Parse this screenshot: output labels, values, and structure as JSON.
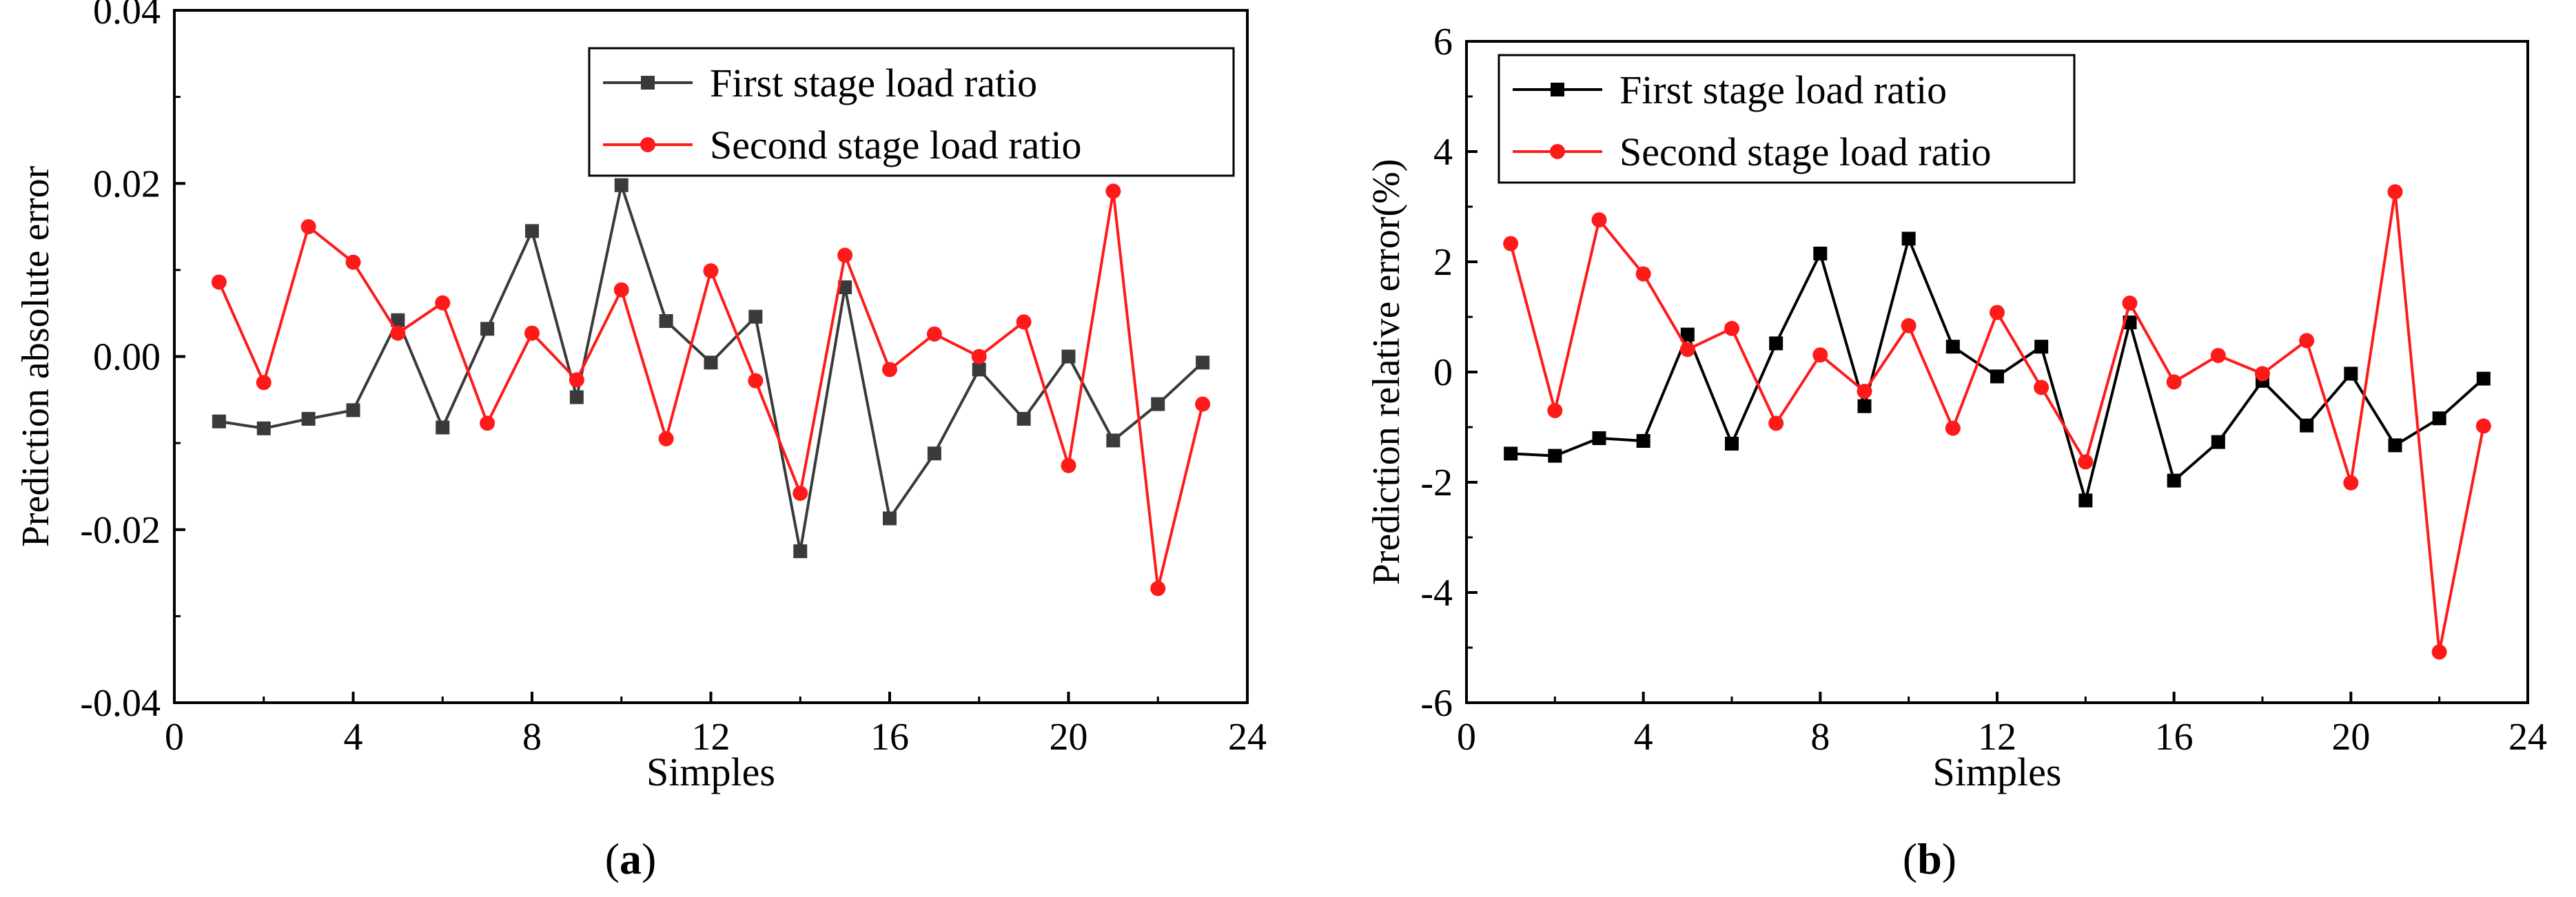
{
  "chart_data": [
    {
      "type": "line",
      "panel_label": "a",
      "xlabel": "Simples",
      "ylabel": "Prediction absolute error",
      "xlim": [
        0,
        24
      ],
      "ylim": [
        -0.04,
        0.04
      ],
      "xticks": [
        0,
        4,
        8,
        12,
        16,
        20,
        24
      ],
      "yticks": [
        -0.04,
        -0.02,
        0.0,
        0.02,
        0.04
      ],
      "ytick_labels": [
        "-0.04",
        "-0.02",
        "0.00",
        "0.02",
        "0.04"
      ],
      "grid": false,
      "legend_position": "top-right",
      "x": [
        1,
        2,
        3,
        4,
        5,
        6,
        7,
        8,
        9,
        10,
        11,
        12,
        13,
        14,
        15,
        16,
        17,
        18,
        19,
        20,
        21,
        22,
        23
      ],
      "series": [
        {
          "name": "First stage load ratio",
          "color": "#3a3a3a",
          "marker": "square",
          "values": [
            -0.0075,
            -0.0083,
            -0.0072,
            -0.0062,
            0.0042,
            -0.0082,
            0.0032,
            0.0145,
            -0.0047,
            0.0198,
            0.0041,
            -0.0007,
            0.0046,
            -0.0225,
            0.008,
            -0.0187,
            -0.0112,
            -0.0015,
            -0.0072,
            0.0,
            -0.0097,
            -0.0055,
            -0.0007
          ]
        },
        {
          "name": "Second stage load ratio",
          "color": "#ff1a1a",
          "marker": "circle",
          "values": [
            0.0086,
            -0.003,
            0.015,
            0.0109,
            0.0027,
            0.0062,
            -0.0077,
            0.0027,
            -0.0027,
            0.0077,
            -0.0095,
            0.0099,
            -0.0028,
            -0.0158,
            0.0117,
            -0.0015,
            0.0026,
            0.0,
            0.004,
            -0.0126,
            0.0191,
            -0.0268,
            -0.0055
          ]
        }
      ]
    },
    {
      "type": "line",
      "panel_label": "b",
      "xlabel": "Simples",
      "ylabel": "Prediction relative error(%)",
      "xlim": [
        0,
        24
      ],
      "ylim": [
        -6,
        6
      ],
      "xticks": [
        0,
        4,
        8,
        12,
        16,
        20,
        24
      ],
      "yticks": [
        -6,
        -4,
        -2,
        0,
        2,
        4,
        6
      ],
      "ytick_labels": [
        "-6",
        "-4",
        "-2",
        "0",
        "2",
        "4",
        "6"
      ],
      "grid": false,
      "legend_position": "top-left",
      "x": [
        1,
        2,
        3,
        4,
        5,
        6,
        7,
        8,
        9,
        10,
        11,
        12,
        13,
        14,
        15,
        16,
        17,
        18,
        19,
        20,
        21,
        22,
        23
      ],
      "series": [
        {
          "name": "First stage load ratio",
          "color": "#000000",
          "marker": "square",
          "values": [
            -1.48,
            -1.52,
            -1.2,
            -1.25,
            0.68,
            -1.3,
            0.52,
            2.15,
            -0.62,
            2.42,
            0.46,
            -0.08,
            0.46,
            -2.33,
            0.9,
            -1.97,
            -1.27,
            -0.16,
            -0.97,
            -0.03,
            -1.33,
            -0.84,
            -0.12
          ]
        },
        {
          "name": "Second stage load ratio",
          "color": "#ff1a1a",
          "marker": "circle",
          "values": [
            2.33,
            -0.7,
            2.76,
            1.78,
            0.41,
            0.79,
            -0.93,
            0.31,
            -0.35,
            0.84,
            -1.02,
            1.08,
            -0.28,
            -1.63,
            1.25,
            -0.18,
            0.3,
            -0.03,
            0.57,
            -2.01,
            3.27,
            -5.08,
            -0.98
          ]
        }
      ]
    }
  ]
}
